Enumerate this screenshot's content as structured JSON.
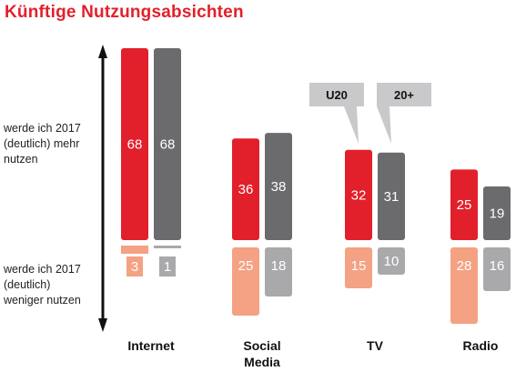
{
  "title": "Künftige Nutzungsabsichten",
  "labels": {
    "more": [
      "werde ich 2017",
      "(deutlich) mehr",
      "nutzen"
    ],
    "less": [
      "werde ich 2017",
      "(deutlich)",
      "weniger nutzen"
    ]
  },
  "colors": {
    "u20_more": "#e2202b",
    "u20_less": "#f4a283",
    "over20_more": "#6b6b6d",
    "over20_less": "#a9a9ab",
    "title": "#e2202b"
  },
  "callouts": [
    {
      "label": "U20",
      "series": "U20"
    },
    {
      "label": "20+",
      "series": "20+"
    }
  ],
  "chart_data": {
    "type": "bar",
    "categories": [
      [
        "Internet"
      ],
      [
        "Social",
        "Media"
      ],
      [
        "TV"
      ],
      [
        "Radio"
      ]
    ],
    "series": [
      {
        "name": "U20",
        "more": [
          68,
          36,
          32,
          25
        ],
        "less": [
          3,
          25,
          15,
          28
        ]
      },
      {
        "name": "20+",
        "more": [
          68,
          38,
          31,
          19
        ],
        "less": [
          1,
          18,
          10,
          16
        ]
      }
    ],
    "diverging": true
  }
}
